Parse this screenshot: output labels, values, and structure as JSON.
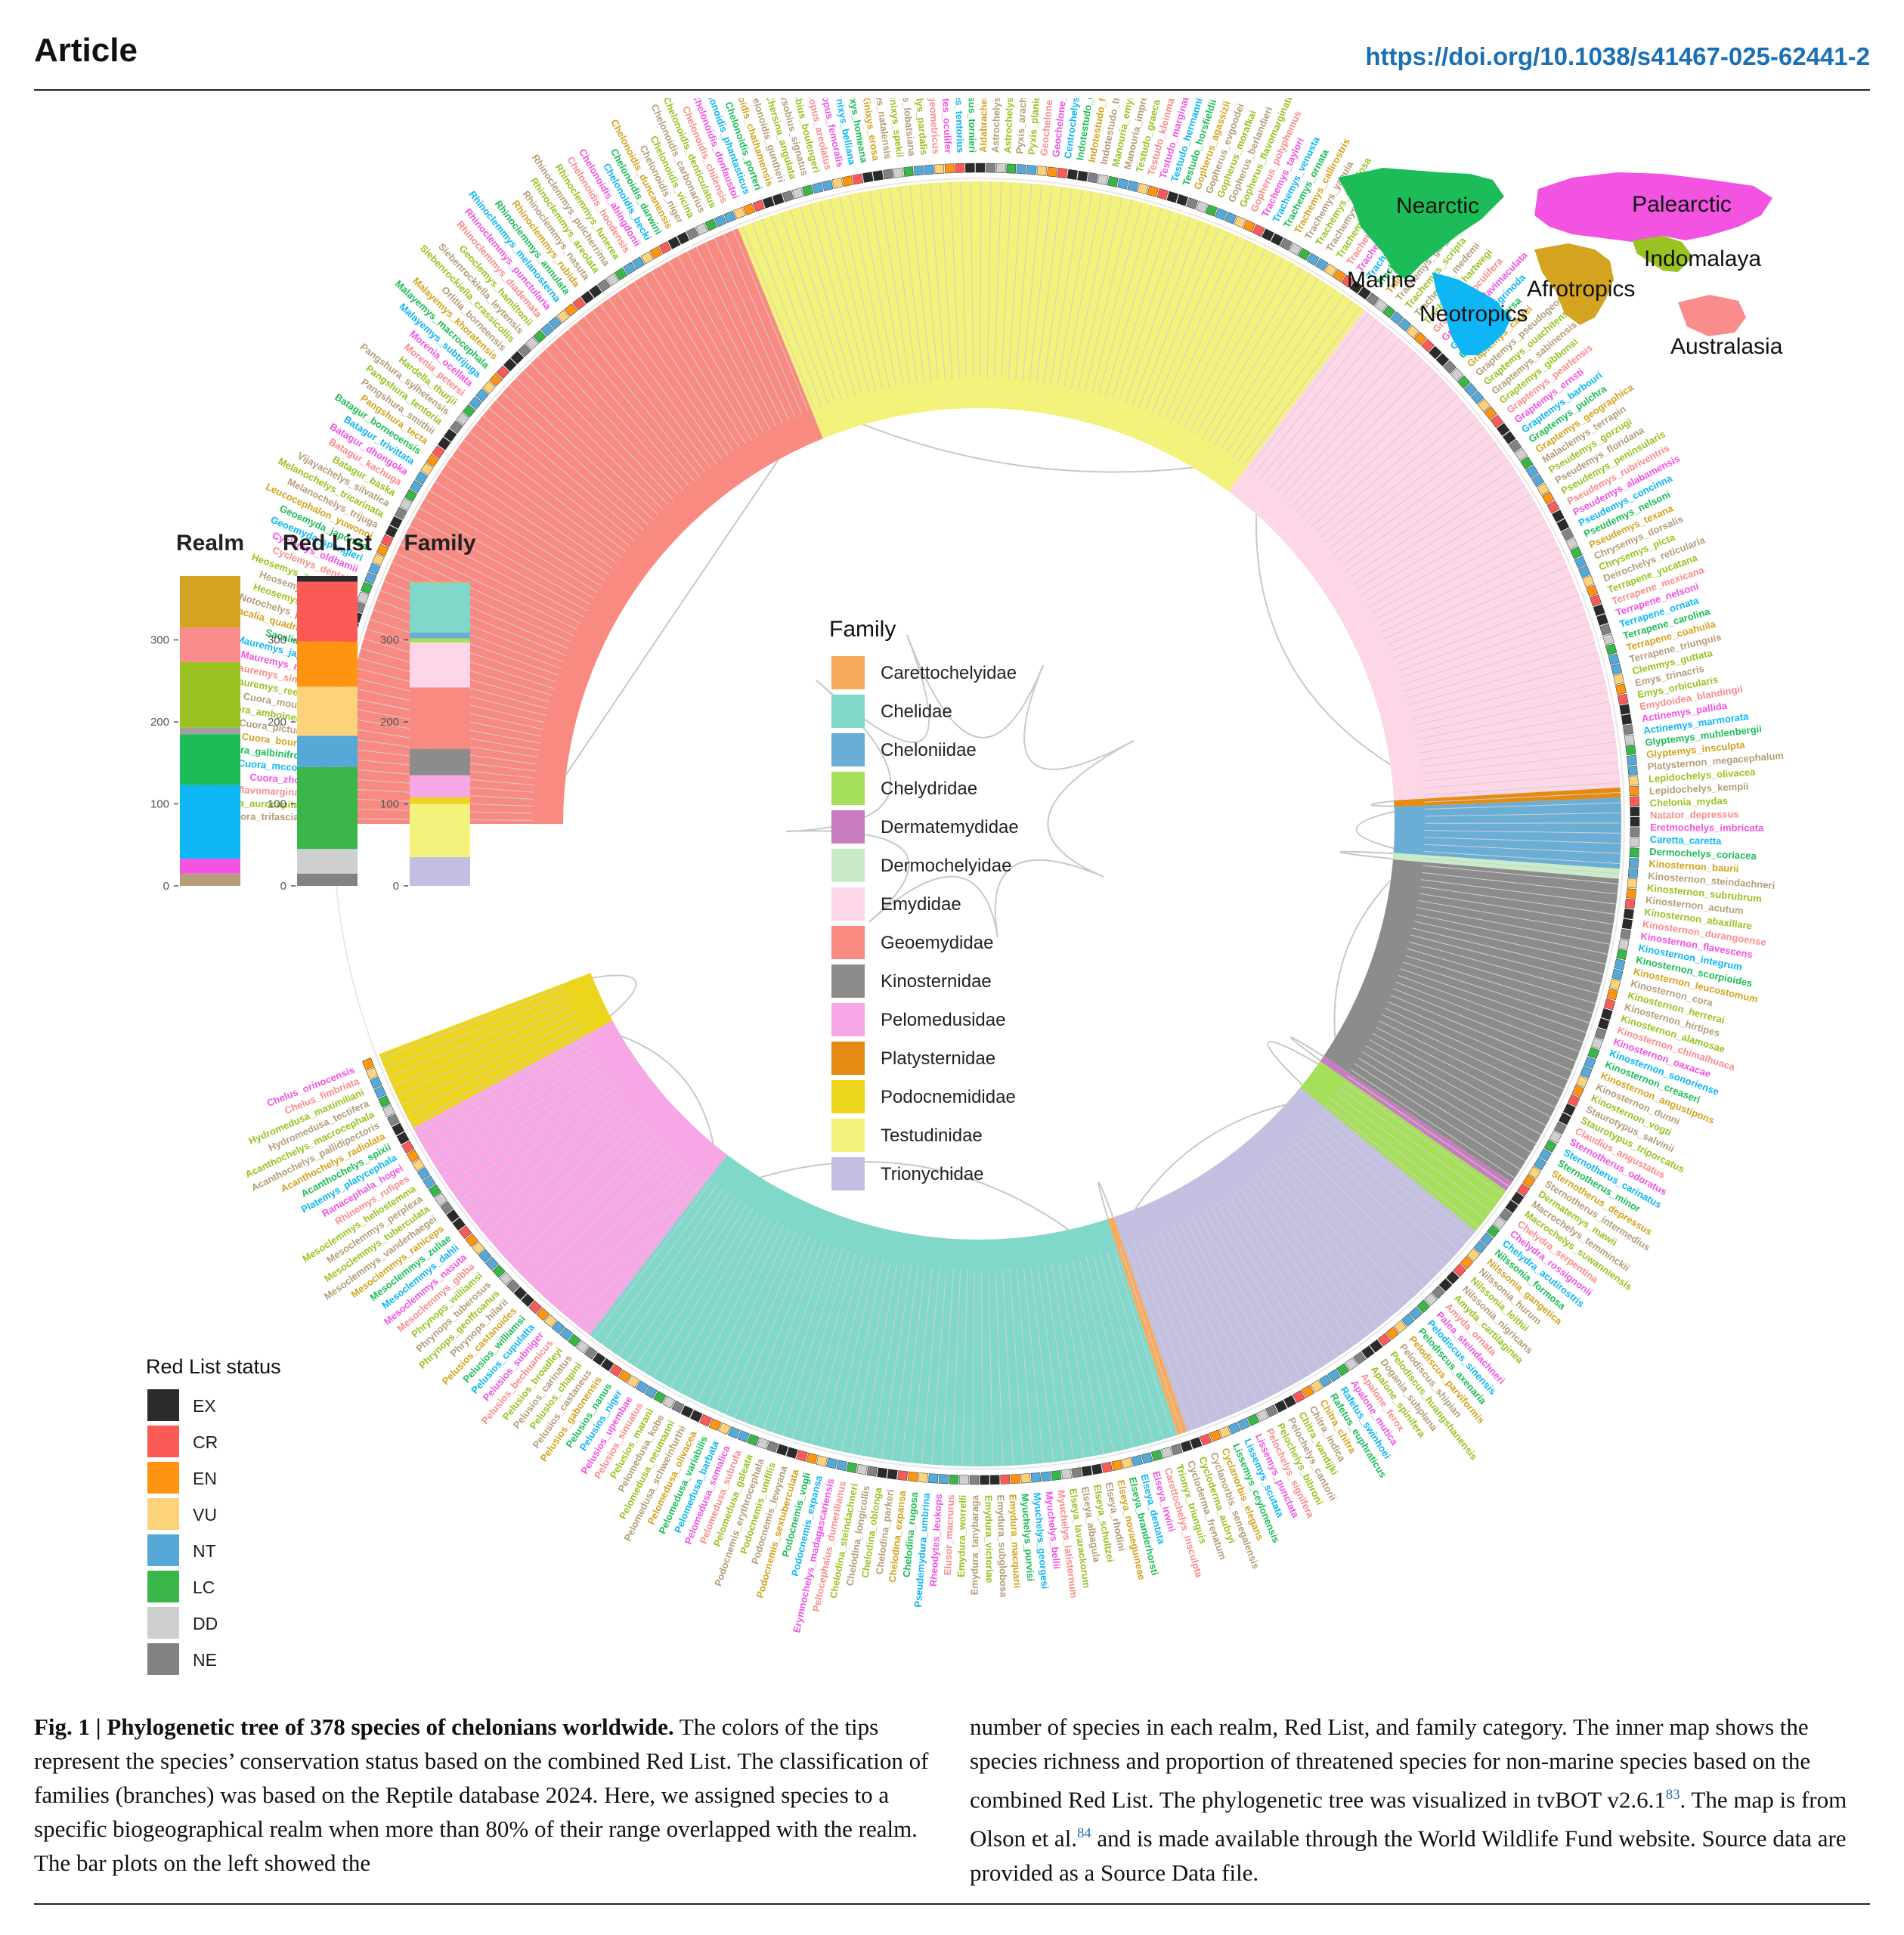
{
  "header": {
    "kind": "Article",
    "doi": "https://doi.org/10.1038/s41467-025-62441-2"
  },
  "colors": {
    "family": {
      "Carettochelyidae": "#f7ab5e",
      "Chelidae": "#7fd8c9",
      "Cheloniidae": "#6aaed6",
      "Chelydridae": "#a6df5a",
      "Dermatemydidae": "#c77dbf",
      "Dermochelyidae": "#c8ecc8",
      "Emydidae": "#fdd6e8",
      "Geoemydidae": "#f88a82",
      "Kinosternidae": "#8c8c8c",
      "Pelomedusidae": "#f7a6e6",
      "Platysternidae": "#e58a12",
      "Podocnemididae": "#ecd51c",
      "Testudinidae": "#f3f27a",
      "Trionychidae": "#c3bfe0"
    },
    "redlist": {
      "EX": "#2b2b2b",
      "CR": "#fb5a57",
      "EN": "#ff9312",
      "VU": "#fcd27a",
      "NT": "#56a9d6",
      "LC": "#39b54a",
      "DD": "#cfcfcf",
      "NE": "#828282"
    },
    "realm": {
      "Marine": "#b59d7a",
      "Nearctic": "#1cbd58",
      "Palearctic": "#f253e0",
      "Indomalaya": "#9ac222",
      "Afrotropics": "#d4a320",
      "Neotropics": "#0eb6f5",
      "Australasia": "#fb8c8c"
    }
  },
  "map": {
    "labels": [
      "Nearctic",
      "Palearctic",
      "Marine",
      "Indomalaya",
      "Afrotropics",
      "Neotropics",
      "Australasia"
    ]
  },
  "bar_panel": {
    "titles": [
      "Realm",
      "Red List",
      "Family"
    ],
    "ticks": [
      "0",
      "100",
      "200",
      "300"
    ]
  },
  "family_legend": {
    "title": "Family",
    "items": [
      "Carettochelyidae",
      "Chelidae",
      "Cheloniidae",
      "Chelydridae",
      "Dermatemydidae",
      "Dermochelyidae",
      "Emydidae",
      "Geoemydidae",
      "Kinosternidae",
      "Pelomedusidae",
      "Platysternidae",
      "Podocnemididae",
      "Testudinidae",
      "Trionychidae"
    ]
  },
  "redlist_legend": {
    "title": "Red List status",
    "items": [
      "EX",
      "CR",
      "EN",
      "VU",
      "NT",
      "LC",
      "DD",
      "NE"
    ]
  },
  "chart_data": {
    "type": "bar",
    "title": "",
    "stacked": true,
    "ylim": [
      0,
      378
    ],
    "ticks": [
      0,
      100,
      200,
      300
    ],
    "categories": [
      "Realm",
      "Red List",
      "Family"
    ],
    "stacks": [
      {
        "category": "Realm",
        "segments": [
          {
            "name": "Marine",
            "color": "#b59d7a",
            "value": 15
          },
          {
            "name": "Palearctic",
            "color": "#f253e0",
            "value": 18
          },
          {
            "name": "Neotropics",
            "color": "#0eb6f5",
            "value": 90
          },
          {
            "name": "Nearctic",
            "color": "#1cbd58",
            "value": 62
          },
          {
            "name": "Neotropics",
            "color": "#a0a0a0",
            "value": 8
          },
          {
            "name": "Indomalaya",
            "color": "#9ac222",
            "value": 80
          },
          {
            "name": "Australasia",
            "color": "#fb8c8c",
            "value": 42
          },
          {
            "name": "Afrotropics",
            "color": "#d4a320",
            "value": 63
          }
        ]
      },
      {
        "category": "Red List",
        "segments": [
          {
            "name": "NE",
            "color": "#828282",
            "value": 15
          },
          {
            "name": "DD",
            "color": "#cfcfcf",
            "value": 30
          },
          {
            "name": "LC",
            "color": "#39b54a",
            "value": 100
          },
          {
            "name": "NT",
            "color": "#56a9d6",
            "value": 38
          },
          {
            "name": "VU",
            "color": "#fcd27a",
            "value": 60
          },
          {
            "name": "EN",
            "color": "#ff9312",
            "value": 55
          },
          {
            "name": "CR",
            "color": "#fb5a57",
            "value": 73
          },
          {
            "name": "EX",
            "color": "#2b2b2b",
            "value": 7
          }
        ]
      },
      {
        "category": "Family",
        "segments": [
          {
            "name": "Trionychidae",
            "color": "#c3bfe0",
            "value": 35
          },
          {
            "name": "Testudinidae",
            "color": "#f3f27a",
            "value": 65
          },
          {
            "name": "Podocnemididae",
            "color": "#ecd51c",
            "value": 8
          },
          {
            "name": "Pelomedusidae",
            "color": "#f7a6e6",
            "value": 27
          },
          {
            "name": "Kinosternidae",
            "color": "#8c8c8c",
            "value": 32
          },
          {
            "name": "Geoemydidae",
            "color": "#f88a82",
            "value": 75
          },
          {
            "name": "Emydidae",
            "color": "#fdd6e8",
            "value": 55
          },
          {
            "name": "Chelydridae",
            "color": "#a6df5a",
            "value": 5
          },
          {
            "name": "Cheloniidae",
            "color": "#6aaed6",
            "value": 7
          },
          {
            "name": "Chelidae",
            "color": "#7fd8c9",
            "value": 61
          },
          {
            "name": "Carettochelyidae",
            "color": "#f7ab5e",
            "value": 1
          }
        ]
      }
    ],
    "tree_clades": [
      {
        "family": "Geoemydidae",
        "color": "#f88a82",
        "species": 75
      },
      {
        "family": "Testudinidae",
        "color": "#f3f27a",
        "species": 65
      },
      {
        "family": "Emydidae",
        "color": "#fdd6e8",
        "species": 55
      },
      {
        "family": "Platysternidae",
        "color": "#e58a12",
        "species": 1
      },
      {
        "family": "Cheloniidae",
        "color": "#6aaed6",
        "species": 7
      },
      {
        "family": "Dermochelyidae",
        "color": "#c8ecc8",
        "species": 1
      },
      {
        "family": "Kinosternidae",
        "color": "#8c8c8c",
        "species": 32
      },
      {
        "family": "Dermatemydidae",
        "color": "#c77dbf",
        "species": 1
      },
      {
        "family": "Chelydridae",
        "color": "#a6df5a",
        "species": 5
      },
      {
        "family": "Trionychidae",
        "color": "#c3bfe0",
        "species": 35
      },
      {
        "family": "Carettochelyidae",
        "color": "#f7ab5e",
        "species": 1
      },
      {
        "family": "Chelidae",
        "color": "#7fd8c9",
        "species": 61
      },
      {
        "family": "Pelomedusidae",
        "color": "#f7a6e6",
        "species": 27
      },
      {
        "family": "Podocnemididae",
        "color": "#ecd51c",
        "species": 8
      }
    ],
    "tip_labels": {
      "Geoemydidae": [
        "Cuora_trifasciata",
        "Cuora_aurocapitata",
        "Cuora_flavomarginata",
        "Cuora_zhoui",
        "Cuora_mccordi",
        "Cuora_galbinifrons",
        "Cuora_bourreti",
        "Cuora_picturata",
        "Cuora_amboinensis",
        "Cuora_mouhotii",
        "Mauremys_reevesii",
        "Mauremys_sinensis",
        "Mauremys_mutica",
        "Mauremys_japonica",
        "Sacalia_bealei",
        "Sacalia_quadriocellata",
        "Notochelys_platynota",
        "Heosemys_spinosa",
        "Heosemys_grandis",
        "Heosemys_annandalii",
        "Cyclemys_dentata",
        "Cyclemys_oldhamii",
        "Geoemyda_spengleri",
        "Geoemyda_japonica",
        "Leucocephalon_yuwonoi",
        "Melanochelys_trijuga",
        "Melanochelys_tricarinata",
        "Vijayachelys_silvatica",
        "Batagur_baska",
        "Batagur_kachuga",
        "Batagur_dhongoka",
        "Batagur_trivittata",
        "Batagur_borneoensis",
        "Pangshura_tecta",
        "Pangshura_smithii",
        "Pangshura_tentoria",
        "Pangshura_sylhetensis",
        "Hardella_thurjii",
        "Morenia_petersi",
        "Morenia_ocellata",
        "Malayemys_subtrijuga",
        "Malayemys_macrocephala",
        "Malayemys_khoratensis",
        "Orlitia_borneensis",
        "Siebenrockiella_crassicollis",
        "Siebenrockiella_leytensis",
        "Geoclemys_hamiltonii",
        "Rhinoclemmys_diademata",
        "Rhinoclemmys_punctularia",
        "Rhinoclemmys_melanosterna",
        "Rhinoclemmys_annulata",
        "Rhinoclemmys_rubida",
        "Rhinoclemmys_nasuta",
        "Rhinoclemmys_areolata",
        "Rhinoclemmys_pulcherrima",
        "Rhinoclemmys_funerea"
      ],
      "Testudinidae": [
        "Chelonoidis_hoodensis",
        "Chelonoidis_abingdonii",
        "Chelonoidis_becki",
        "Chelonoidis_darwini",
        "Chelonoidis_duncanensis",
        "Chelonoidis_niger",
        "Chelonoidis_vicina",
        "Chelonoidis_carbonarius",
        "Chelonoidis_denticulatus",
        "Chelonoidis_chilensis",
        "Chelonoidis_donfaustoi",
        "Chelonoidis_phantasticus",
        "Chelonoidis_porteri",
        "Chelonoidis_chathamensis",
        "Chelonoidis_guntheri",
        "Chersina_angulata",
        "Chersobius_signatus",
        "Chersobius_boulengeri",
        "Homopus_areolatus",
        "Homopus_femoralis",
        "Kinixys_belliana",
        "Kinixys_homeana",
        "Kinixys_erosa",
        "Kinixys_natalensis",
        "Kinixys_spekii",
        "Kinixys_lobatsiana",
        "Stigmochelys_pardalis",
        "Psammobates_geometricus",
        "Psammobates_oculifer",
        "Psammobates_tentorius",
        "Malacochersus_tornieri",
        "Aldabrachelys_gigantea",
        "Astrochelys_radiata",
        "Astrochelys_yniphora",
        "Pyxis_arachnoides",
        "Pyxis_planicauda",
        "Geochelone_elegans",
        "Geochelone_platynota",
        "Centrochelys_sulcata",
        "Indotestudo_elongata",
        "Indotestudo_forstenii",
        "Indotestudo_travancorica",
        "Manouria_emys",
        "Manouria_impressa",
        "Testudo_graeca",
        "Testudo_kleinmanni",
        "Testudo_marginata",
        "Testudo_hermanni",
        "Testudo_horsfieldii",
        "Gopherus_agassizii",
        "Gopherus_evgoodei",
        "Gopherus_morafkai",
        "Gopherus_berlandieri",
        "Gopherus_flavomarginatus",
        "Gopherus_polyphemus"
      ],
      "Emydidae": [
        "Trachemys_taylori",
        "Trachemys_venusta",
        "Trachemys_ornata",
        "Trachemys_callirostris",
        "Trachemys_yaquia",
        "Trachemys_nebulosa",
        "Trachemys_grayi",
        "Trachemys_adiutrix",
        "Trachemys_dorbigni",
        "Trachemys_stejnegeri",
        "Trachemys_decorata",
        "Trachemys_terrapen",
        "Trachemys_decussata",
        "Trachemys_gaigeae",
        "Trachemys_scripta",
        "Trachemys_medemi",
        "Trachemys_hartwegi",
        "Graptemys_oculifera",
        "Graptemys_flavimaculata",
        "Graptemys_nigrinoda",
        "Graptemys_versa",
        "Graptemys_caglei",
        "Graptemys_pseudogeographica",
        "Graptemys_ouachitensis",
        "Graptemys_sabinensis",
        "Graptemys_gibbonsi",
        "Graptemys_pearlensis",
        "Graptemys_ernsti",
        "Graptemys_barbouri",
        "Graptemys_pulchra",
        "Graptemys_geographica",
        "Malaclemys_terrapin",
        "Pseudemys_gorzugi",
        "Pseudemys_floridana",
        "Pseudemys_peninsularis",
        "Pseudemys_rubriventris",
        "Pseudemys_alabamensis",
        "Pseudemys_concinna",
        "Pseudemys_nelsoni",
        "Pseudemys_texana",
        "Chrysemys_dorsalis",
        "Chrysemys_picta",
        "Deirochelys_reticularia",
        "Terrapene_yucatana",
        "Terrapene_mexicana",
        "Terrapene_nelsoni",
        "Terrapene_ornata",
        "Terrapene_carolina",
        "Terrapene_coahuila",
        "Terrapene_triunguis",
        "Clemmys_guttata",
        "Emys_trinacris",
        "Emys_orbicularis",
        "Emydoidea_blandingii",
        "Actinemys_pallida",
        "Actinemys_marmorata",
        "Glyptemys_muhlenbergii",
        "Glyptemys_insculpta"
      ],
      "Other_right": [
        "Platysternon_megacephalum",
        "Lepidochelys_olivacea",
        "Lepidochelys_kempii",
        "Chelonia_mydas",
        "Natator_depressus",
        "Eretmochelys_imbricata",
        "Caretta_caretta",
        "Dermochelys_coriacea",
        "Kinosternon_baurii",
        "Kinosternon_steindachneri",
        "Kinosternon_subrubrum",
        "Kinosternon_acutum",
        "Kinosternon_abaxillare",
        "Kinosternon_durangoense",
        "Kinosternon_flavescens",
        "Kinosternon_integrum",
        "Kinosternon_scorpioides",
        "Kinosternon_leucostomum",
        "Kinosternon_cora",
        "Kinosternon_herrerai",
        "Kinosternon_hirtipes",
        "Kinosternon_alamosae",
        "Kinosternon_chimalhuaca",
        "Kinosternon_oaxacae",
        "Kinosternon_sonoriense",
        "Kinosternon_creaseri",
        "Kinosternon_angustipons",
        "Kinosternon_dunni",
        "Kinosternon_vogti",
        "Staurotypus_salvinii",
        "Staurotypus_triporcatus",
        "Claudius_angustatus",
        "Sternotherus_odoratus",
        "Sternotherus_carinatus",
        "Sternotherus_minor",
        "Sternotherus_depressus",
        "Sternotherus_intermedius",
        "Dermatemys_mawii",
        "Macrochelys_temminckii",
        "Macrochelys_suwanniensis",
        "Chelydra_serpentina",
        "Chelydra_rossignonii",
        "Chelydra_acutirostris"
      ],
      "Bottom": [
        "Nilssonia_formosa",
        "Nilssonia_gangetica",
        "Nilssonia_hurum",
        "Nilssonia_leithii",
        "Nilssonia_nigricans",
        "Amyda_cartilaginea",
        "Amyda_ornata",
        "Palea_steindachneri",
        "Pelodiscus_sinensis",
        "Pelodiscus_axenaria",
        "Pelodiscus_parviformis",
        "Pelodiscus_shipian",
        "Pelodiscus_huangshanensis",
        "Dogania_subplana",
        "Apalone_spinifera",
        "Apalone_ferox",
        "Apalone_mutica",
        "Rafetus_swinhoei",
        "Rafetus_euphraticus",
        "Chitra_chitra",
        "Chitra_indica",
        "Chitra_vandijki",
        "Pelochelys_cantorii",
        "Pelochelys_bibroni",
        "Pelochelys_signifera",
        "Lissemys_punctata",
        "Lissemys_scutata",
        "Lissemys_ceylonensis",
        "Cyclanorbis_elegans",
        "Cyclanorbis_senegalensis",
        "Cycloderma_aubryi",
        "Cycloderma_frenatum",
        "Trionyx_triunguis",
        "Carettochelys_insculpta",
        "Elseya_irwini",
        "Elseya_dentata",
        "Elseya_branderhorsti",
        "Elseya_novaeguineae",
        "Elseya_rhodini",
        "Elseya_schultzei",
        "Elseya_albagula",
        "Elseya_lavarackorum",
        "Myuchelys_latisternum",
        "Myuchelys_bellii",
        "Myuchelys_georgesi",
        "Myuchelys_purvisi",
        "Emydura_macquarii",
        "Emydura_subglobosa",
        "Emydura_victoriae",
        "Emydura_tanybaraga",
        "Emydura_worrelli",
        "Elusor_macrurus",
        "Rheodytes_leukops",
        "Pseudemydura_umbrina",
        "Chelodina_rugosa",
        "Chelodina_expansa",
        "Chelodina_parkeri",
        "Chelodina_oblonga",
        "Chelodina_longicollis",
        "Chelodina_steindachneri"
      ],
      "Left": [
        "Peltocephalus_dumerilianus",
        "Erymnochelys_madagascariensis",
        "Podocnemis_expansa",
        "Podocnemis_vogli",
        "Podocnemis_sextuberculata",
        "Podocnemis_lewyana",
        "Podocnemis_unifilis",
        "Podocnemis_erythrocephala",
        "Pelomedusa_galeata",
        "Pelomedusa_subrufa",
        "Pelomedusa_somalica",
        "Pelomedusa_barbata",
        "Pelomedusa_variabilis",
        "Pelomedusa_olivacea",
        "Pelomedusa_schweinfurthi",
        "Pelomedusa_neumanni",
        "Pelomedusa_kobe",
        "Pelusios_marani",
        "Pelusios_sinuatus",
        "Pelusios_upembae",
        "Pelusios_niger",
        "Pelusios_nanus",
        "Pelusios_gabonensis",
        "Pelusios_castaneus",
        "Pelusios_chapini",
        "Pelusios_carinatus",
        "Pelusios_broadleyi",
        "Pelusios_bechuanicus",
        "Pelusios_subniger",
        "Pelusios_cupulatta",
        "Pelusios_williamsi",
        "Pelusios_castanoides",
        "Phrynops_hilarii",
        "Phrynops_geoffroanus",
        "Phrynops_tuberosus",
        "Phrynops_williamsi",
        "Mesoclemmys_gibba",
        "Mesoclemmys_nasuta",
        "Mesoclemmys_dahli",
        "Mesoclemmys_zuliae",
        "Mesoclemmys_raniceps",
        "Mesoclemmys_vanderhaegei",
        "Mesoclemmys_tuberculata",
        "Mesoclemmys_perplexa",
        "Mesoclemmys_heliostemma",
        "Rhinemys_rufipes",
        "Ranacephala_hogei",
        "Platemys_platycephala",
        "Acanthochelys_spixii",
        "Acanthochelys_radiolata",
        "Acanthochelys_pallidipectoris",
        "Acanthochelys_macrocephala",
        "Hydromedusa_tectifera",
        "Hydromedusa_maximiliani",
        "Chelus_fimbriata",
        "Chelus_orinocensis"
      ]
    }
  },
  "caption": {
    "label": "Fig. 1 | Phylogenetic tree of 378 species of chelonians worldwide.",
    "left_text": " The colors of the tips represent the species’ conservation status based on the combined Red List. The classification of families (branches) was based on the Reptile database 2024. Here, we assigned species to a specific biogeographical realm when more than 80% of their range overlapped with the realm. The bar plots on the left showed the",
    "right_text_1": "number of species in each realm, Red List, and family category. The inner map shows the species richness and proportion of threatened species for non-marine species based on the combined Red List. The phylogenetic tree was visualized in tvBOT v2.6.1",
    "ref_1": "83",
    "right_text_2": ". The map is from Olson et al.",
    "ref_2": "84",
    "right_text_3": " and is made available through the World Wildlife Fund website. Source data are provided as a Source Data file."
  }
}
